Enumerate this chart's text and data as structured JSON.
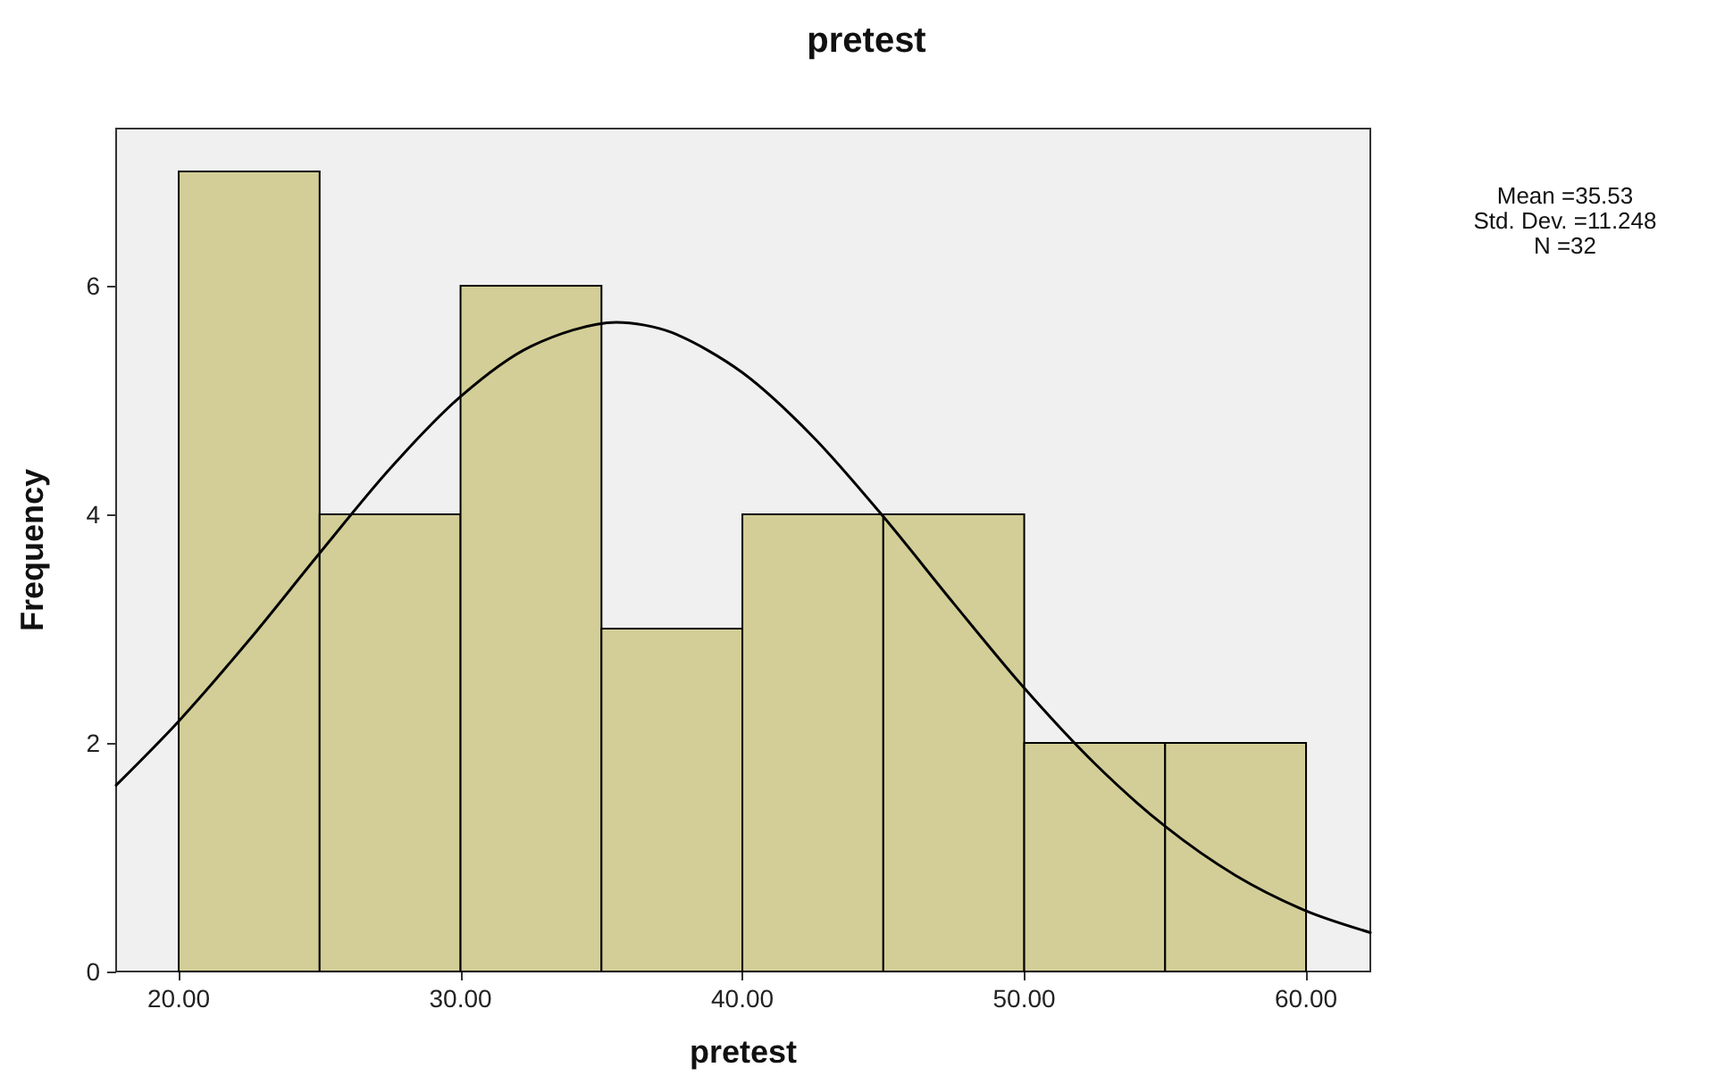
{
  "chart_data": {
    "type": "histogram",
    "title": "pretest",
    "xlabel": "pretest",
    "ylabel": "Frequency",
    "bins": [
      20,
      25,
      30,
      35,
      40,
      45,
      50,
      55,
      60
    ],
    "series": [
      {
        "color": "#d3ce97",
        "values": [
          7,
          4,
          6,
          3,
          4,
          4,
          2,
          2
        ]
      },
      {
        "type": "line",
        "color": "#000000",
        "x": [
          17.78,
          20,
          22.5,
          25,
          27.5,
          30,
          32.5,
          35.53,
          37.5,
          40,
          42.5,
          45,
          47.5,
          50,
          52.5,
          55,
          57.5,
          60,
          62.28
        ],
        "values": [
          1.63,
          2.19,
          2.9,
          3.66,
          4.4,
          5.03,
          5.47,
          5.68,
          5.59,
          5.24,
          4.68,
          3.98,
          3.22,
          2.48,
          1.82,
          1.27,
          0.84,
          0.53,
          0.34
        ]
      }
    ],
    "xlim": [
      17.78,
      62.28
    ],
    "ylim": [
      0,
      7.375
    ],
    "xticks": [
      {
        "value": 20,
        "label": "20.00"
      },
      {
        "value": 30,
        "label": "30.00"
      },
      {
        "value": 40,
        "label": "40.00"
      },
      {
        "value": 50,
        "label": "50.00"
      },
      {
        "value": 60,
        "label": "60.00"
      }
    ],
    "yticks": [
      0,
      2,
      4,
      6
    ],
    "annotations": [
      "Mean =35.53",
      "Std. Dev. =11.248",
      "N =32"
    ],
    "grid": false,
    "marker": "none",
    "line_style": "solid"
  }
}
